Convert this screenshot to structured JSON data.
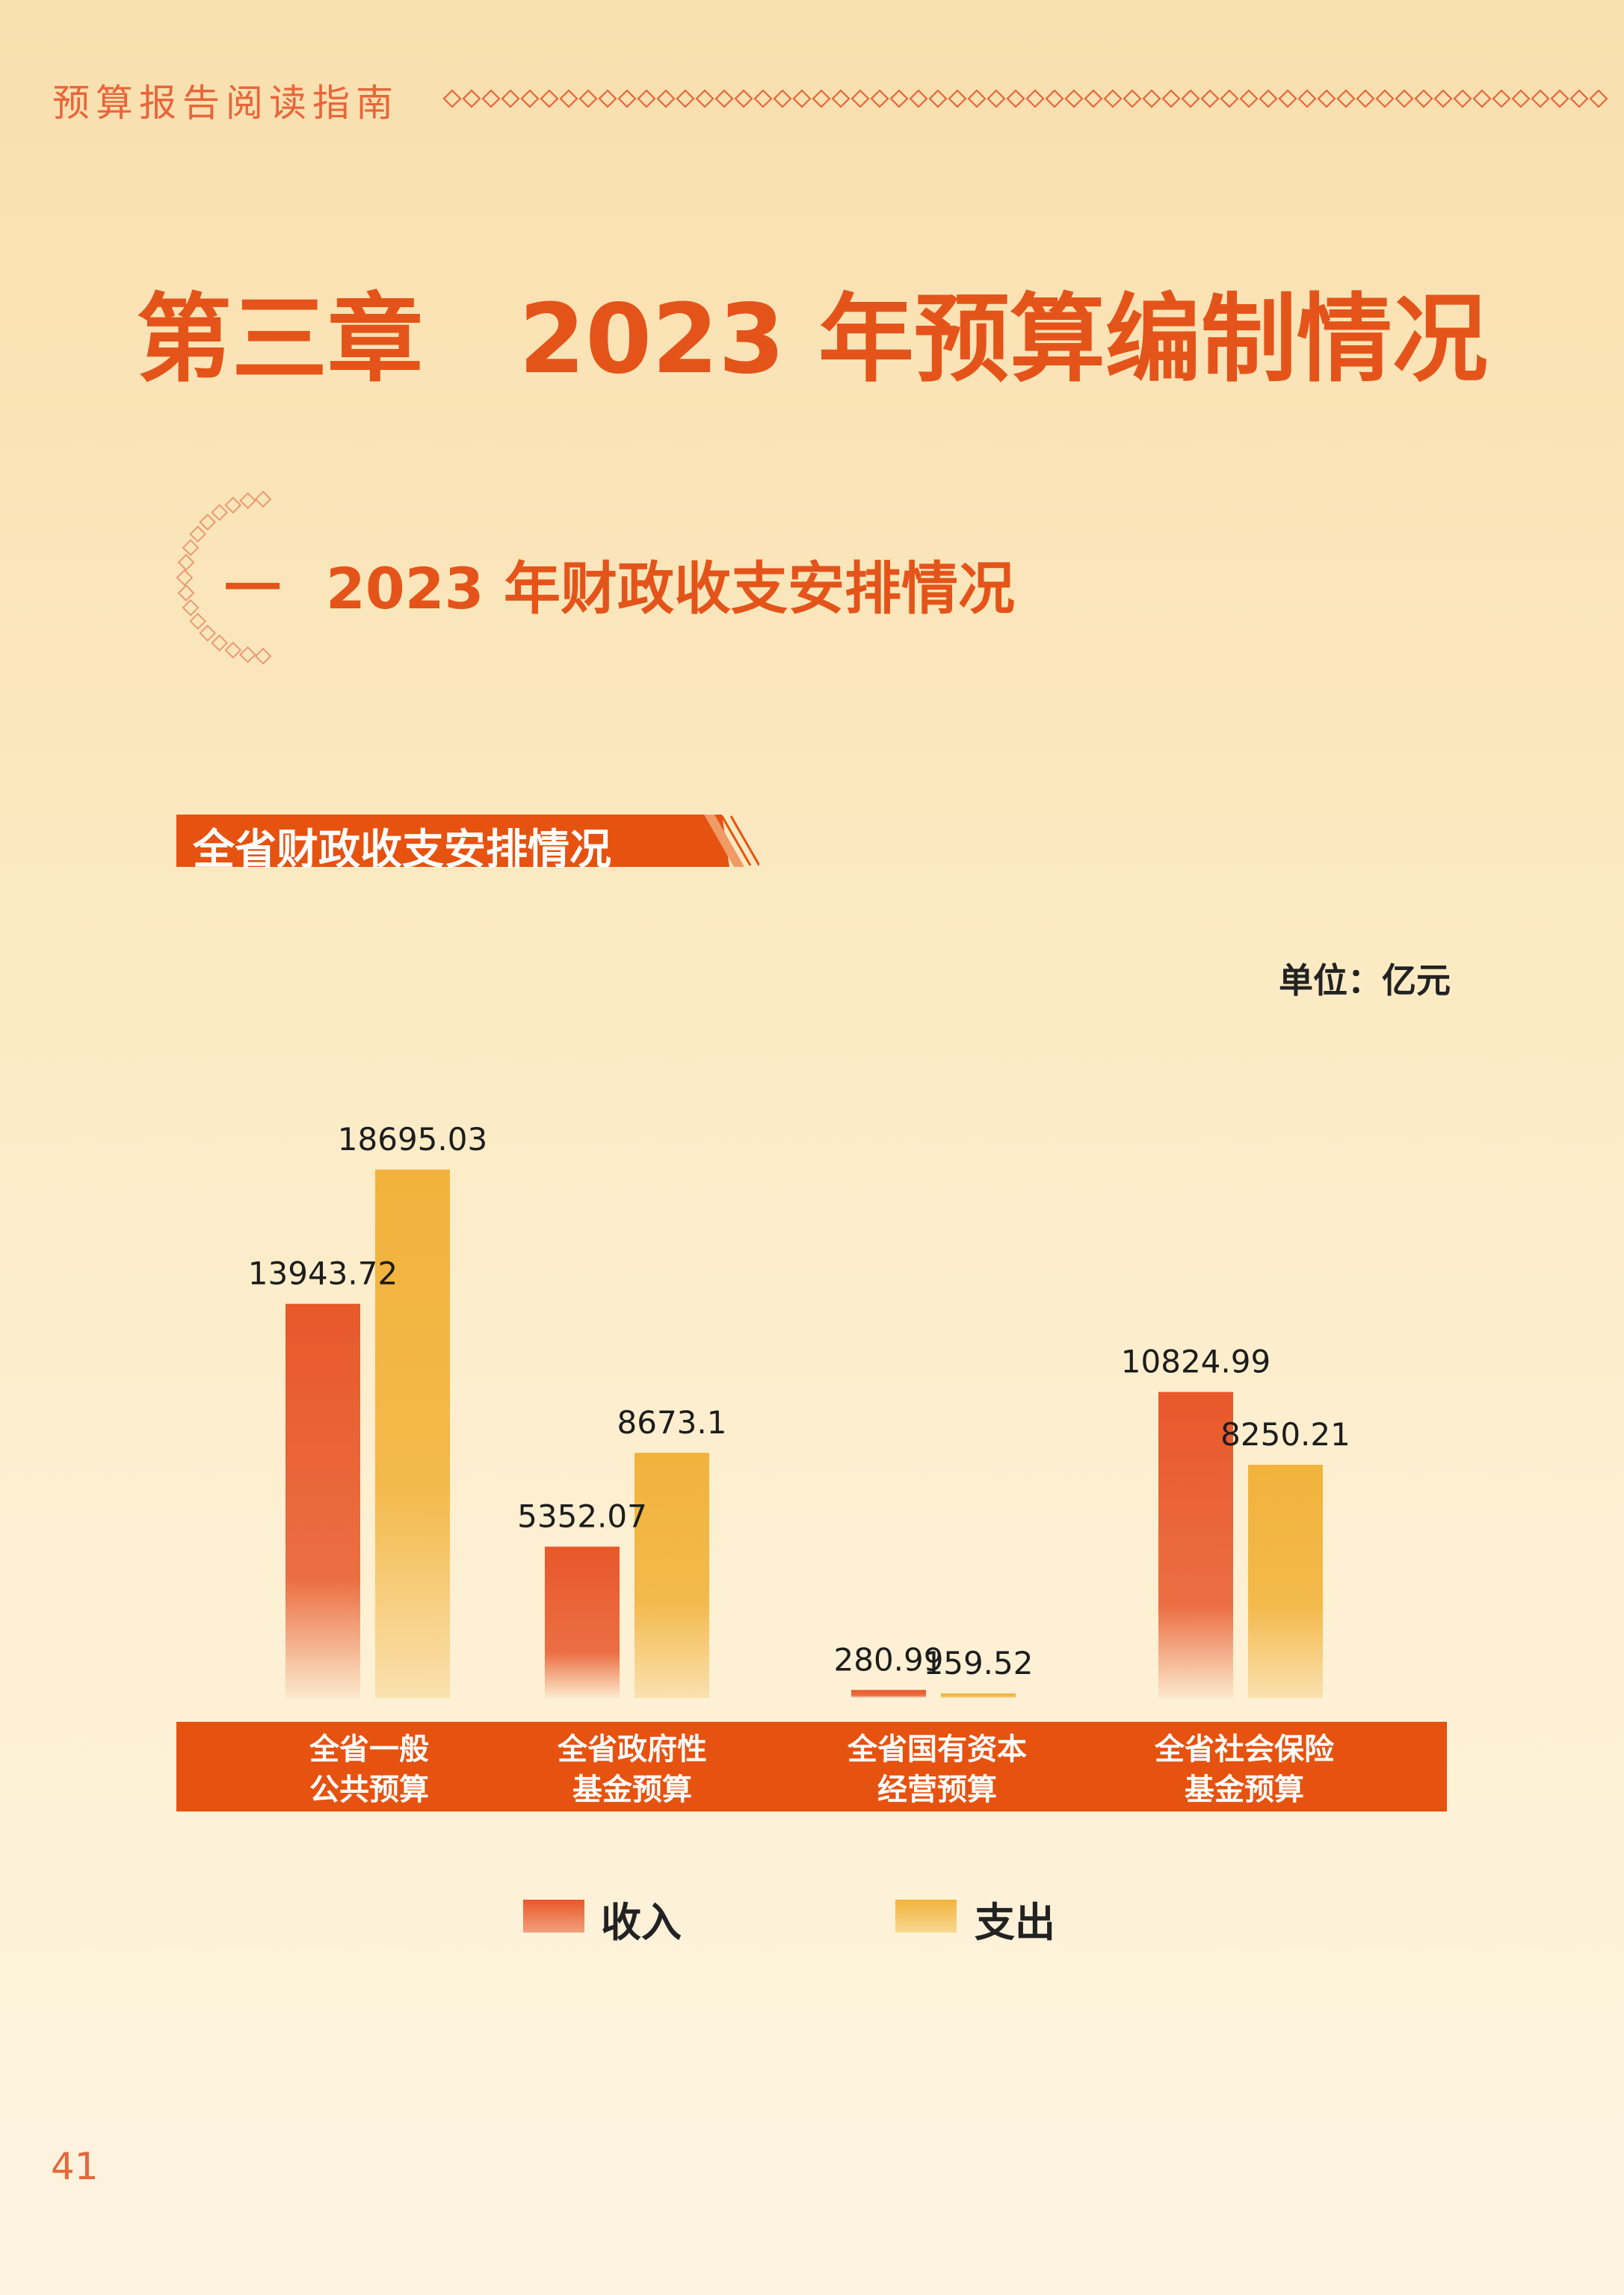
{
  "header": {
    "title": "预算报告阅读指南"
  },
  "chapter": {
    "title": "第三章　2023 年预算编制情况"
  },
  "section": {
    "number": "一",
    "title": "2023 年财政收支安排情况"
  },
  "chart_banner": {
    "title": "全省财政收支安排情况"
  },
  "unit": "单位：亿元",
  "legend": {
    "income": "收入",
    "expense": "支出"
  },
  "colors": {
    "income": "#e8582a",
    "expense": "#f2b33c",
    "band": "#e6520f",
    "accent": "#e4541a"
  },
  "page_number": "41",
  "chart_data": {
    "type": "bar",
    "categories": [
      [
        "全省一般",
        "公共预算"
      ],
      [
        "全省政府性",
        "基金预算"
      ],
      [
        "全省国有资本",
        "经营预算"
      ],
      [
        "全省社会保险",
        "基金预算"
      ]
    ],
    "series": [
      {
        "name": "收入",
        "values": [
          13943.72,
          5352.07,
          280.99,
          10824.99
        ]
      },
      {
        "name": "支出",
        "values": [
          18695.03,
          8673.1,
          159.52,
          8250.21
        ]
      }
    ],
    "value_labels": [
      [
        "13943.72",
        "5352.07",
        "280.99",
        "10824.99"
      ],
      [
        "18695.03",
        "8673.1",
        "159.52",
        "8250.21"
      ]
    ],
    "ylim": [
      0,
      18695.03
    ],
    "grid": false,
    "legend_position": "bottom"
  }
}
